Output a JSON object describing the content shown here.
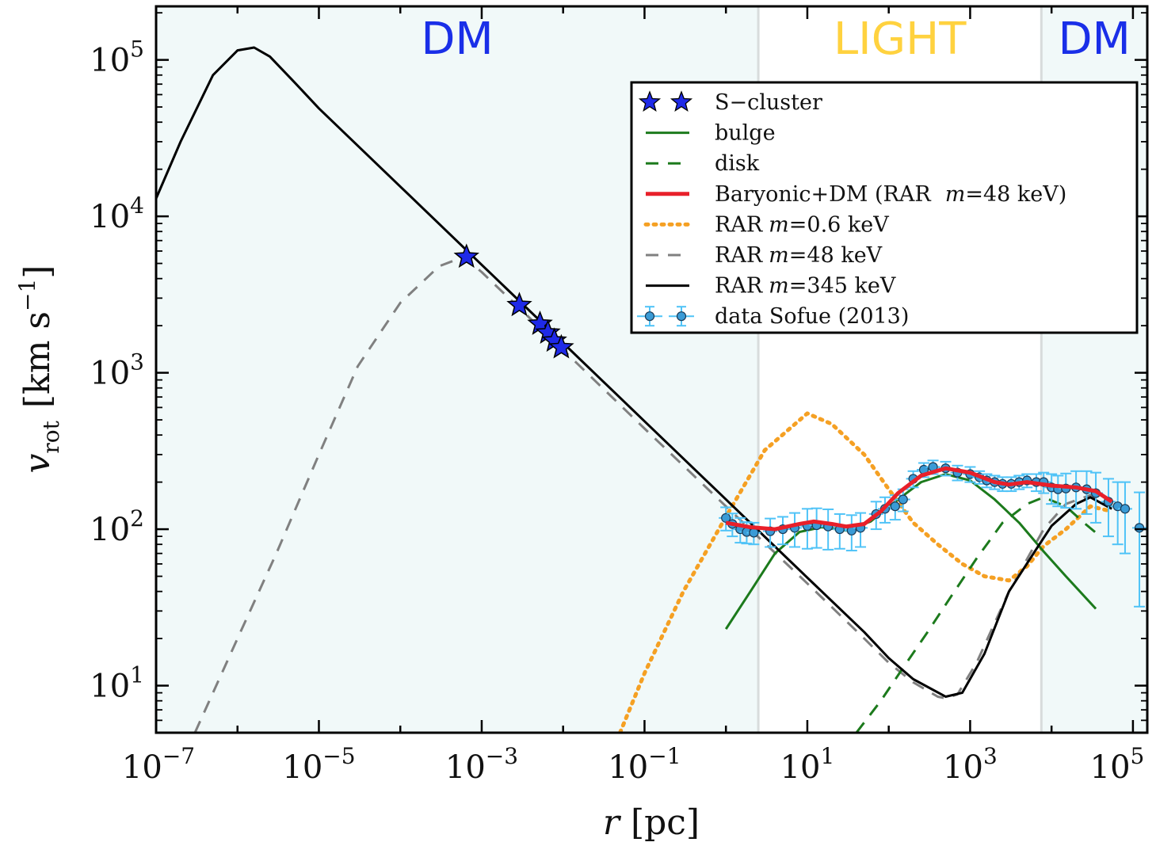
{
  "chart_data": {
    "type": "line",
    "title": "",
    "xlabel": {
      "var": "r",
      "unit": "[pc]"
    },
    "ylabel": {
      "var": "v",
      "sub": "rot",
      "unit_main": "[km s",
      "unit_exp": "−1",
      "unit_close": "]"
    },
    "x_scale": "log",
    "y_scale": "log",
    "xlim": [
      1e-07,
      150000
    ],
    "ylim": [
      5,
      220000
    ],
    "x_ticks": [
      {
        "value": 1e-07,
        "base": "10",
        "exp": "−7"
      },
      {
        "value": 1e-05,
        "base": "10",
        "exp": "−5"
      },
      {
        "value": 0.001,
        "base": "10",
        "exp": "−3"
      },
      {
        "value": 0.1,
        "base": "10",
        "exp": "−1"
      },
      {
        "value": 10,
        "base": "10",
        "exp": "1"
      },
      {
        "value": 1000,
        "base": "10",
        "exp": "3"
      },
      {
        "value": 100000,
        "base": "10",
        "exp": "5"
      }
    ],
    "y_ticks": [
      {
        "value": 10,
        "base": "10",
        "exp": "1"
      },
      {
        "value": 100,
        "base": "10",
        "exp": "2"
      },
      {
        "value": 1000,
        "base": "10",
        "exp": "3"
      },
      {
        "value": 10000,
        "base": "10",
        "exp": "4"
      },
      {
        "value": 100000,
        "base": "10",
        "exp": "5"
      }
    ],
    "grid": false,
    "legend_position": "top-right",
    "regions": [
      {
        "label": "DM",
        "x_range": [
          1e-07,
          2.5
        ],
        "shaded": true,
        "label_color": "#1a2fe8"
      },
      {
        "label": "LIGHT",
        "x_range": [
          2.5,
          7500
        ],
        "shaded": false,
        "label_color": "#ffd23f"
      },
      {
        "label": "DM",
        "x_range": [
          7500,
          150000
        ],
        "shaded": true,
        "label_color": "#1a2fe8"
      }
    ],
    "series": [
      {
        "name": "S−cluster",
        "style": "star-markers",
        "color": "#1f2ae8",
        "points": [
          [
            0.00065,
            5500
          ],
          [
            0.0029,
            2700
          ],
          [
            0.0052,
            2050
          ],
          [
            0.0065,
            1800
          ],
          [
            0.0078,
            1600
          ],
          [
            0.0095,
            1450
          ]
        ]
      },
      {
        "name": "bulge",
        "style": "solid",
        "color": "#1c7a1c",
        "points": [
          [
            1,
            23
          ],
          [
            2,
            40
          ],
          [
            4,
            70
          ],
          [
            8,
            96
          ],
          [
            15,
            103
          ],
          [
            30,
            98
          ],
          [
            60,
            112
          ],
          [
            120,
            150
          ],
          [
            250,
            200
          ],
          [
            500,
            225
          ],
          [
            1000,
            205
          ],
          [
            2000,
            155
          ],
          [
            4000,
            110
          ],
          [
            8000,
            72
          ],
          [
            15000,
            50
          ],
          [
            35000,
            31
          ]
        ]
      },
      {
        "name": "disk",
        "style": "dashed",
        "color": "#1c7a1c",
        "points": [
          [
            40,
            5
          ],
          [
            80,
            8
          ],
          [
            150,
            13
          ],
          [
            300,
            22
          ],
          [
            600,
            38
          ],
          [
            1200,
            65
          ],
          [
            2500,
            110
          ],
          [
            5000,
            145
          ],
          [
            8000,
            160
          ],
          [
            15000,
            140
          ],
          [
            25000,
            110
          ],
          [
            35000,
            95
          ]
        ]
      },
      {
        "name": "Baryonic+DM (RAR  m=48 keV)",
        "legend_text": "Baryonic+DM (RAR",
        "legend_m": "m",
        "legend_tail": "=48 keV)",
        "style": "solid-thick",
        "color": "#e8202a",
        "points": [
          [
            1,
            110
          ],
          [
            2,
            103
          ],
          [
            4,
            100
          ],
          [
            8,
            108
          ],
          [
            12,
            112
          ],
          [
            20,
            108
          ],
          [
            30,
            104
          ],
          [
            50,
            108
          ],
          [
            80,
            130
          ],
          [
            130,
            170
          ],
          [
            250,
            220
          ],
          [
            500,
            245
          ],
          [
            1000,
            230
          ],
          [
            2000,
            200
          ],
          [
            3000,
            193
          ],
          [
            5000,
            200
          ],
          [
            10000,
            190
          ],
          [
            20000,
            185
          ],
          [
            35000,
            175
          ],
          [
            55000,
            150
          ]
        ]
      },
      {
        "name": "RAR m=0.6 keV",
        "legend_text": "RAR",
        "legend_m": "m",
        "legend_tail": "=0.6 keV",
        "style": "dotted",
        "color": "#f5a023",
        "points": [
          [
            0.05,
            5
          ],
          [
            0.1,
            12
          ],
          [
            0.3,
            40
          ],
          [
            1,
            120
          ],
          [
            3,
            320
          ],
          [
            10,
            550
          ],
          [
            20,
            470
          ],
          [
            50,
            300
          ],
          [
            100,
            180
          ],
          [
            200,
            110
          ],
          [
            400,
            80
          ],
          [
            800,
            60
          ],
          [
            1500,
            50
          ],
          [
            3000,
            47
          ],
          [
            5000,
            58
          ],
          [
            8000,
            78
          ],
          [
            15000,
            100
          ],
          [
            30000,
            140
          ],
          [
            55000,
            130
          ]
        ]
      },
      {
        "name": "RAR m=48 keV",
        "legend_text": "RAR",
        "legend_m": "m",
        "legend_tail": "=48 keV",
        "style": "dashed",
        "color": "#808080",
        "points": [
          [
            3e-07,
            5
          ],
          [
            1e-06,
            20
          ],
          [
            3e-06,
            70
          ],
          [
            1e-05,
            300
          ],
          [
            3e-05,
            1100
          ],
          [
            0.0001,
            2800
          ],
          [
            0.0003,
            4800
          ],
          [
            0.0006,
            5500
          ],
          [
            0.001,
            4400
          ],
          [
            0.01,
            1400
          ],
          [
            0.1,
            440
          ],
          [
            1,
            140
          ],
          [
            10,
            45
          ],
          [
            50,
            20
          ],
          [
            100,
            14
          ],
          [
            200,
            10.5
          ],
          [
            400,
            8.5
          ],
          [
            500,
            8.3
          ],
          [
            700,
            8.8
          ],
          [
            1200,
            14
          ],
          [
            3000,
            40
          ],
          [
            8000,
            100
          ],
          [
            15000,
            145
          ],
          [
            30000,
            165
          ],
          [
            55000,
            140
          ]
        ]
      },
      {
        "name": "RAR m=345 keV",
        "legend_text": "RAR",
        "legend_m": "m",
        "legend_tail": "=345 keV",
        "style": "solid",
        "color": "#000000",
        "points": [
          [
            1e-07,
            13000
          ],
          [
            2e-07,
            30000
          ],
          [
            5e-07,
            80000
          ],
          [
            1e-06,
            115000
          ],
          [
            1.6e-06,
            120000
          ],
          [
            2.5e-06,
            105000
          ],
          [
            5e-06,
            72000
          ],
          [
            1e-05,
            49000
          ],
          [
            0.0001,
            15500
          ],
          [
            0.001,
            4900
          ],
          [
            0.01,
            1550
          ],
          [
            0.1,
            490
          ],
          [
            1,
            155
          ],
          [
            10,
            49
          ],
          [
            50,
            22
          ],
          [
            100,
            15
          ],
          [
            200,
            11
          ],
          [
            500,
            8.5
          ],
          [
            800,
            9
          ],
          [
            1500,
            16
          ],
          [
            3000,
            40
          ],
          [
            6000,
            70
          ],
          [
            10000,
            105
          ],
          [
            20000,
            145
          ],
          [
            30000,
            160
          ],
          [
            55000,
            135
          ]
        ]
      },
      {
        "name": "data Sofue (2013)",
        "style": "points-with-errorbars",
        "color": "#4fc3f7",
        "marker_fill": "#3a9bd6",
        "points": [
          {
            "x": 1.0,
            "y": 118,
            "yerr": 20
          },
          {
            "x": 1.2,
            "y": 108,
            "yerr": 18
          },
          {
            "x": 1.5,
            "y": 100,
            "yerr": 18
          },
          {
            "x": 1.8,
            "y": 96,
            "yerr": 15
          },
          {
            "x": 2.2,
            "y": 95,
            "yerr": 15
          },
          {
            "x": 3.5,
            "y": 97,
            "yerr": 20
          },
          {
            "x": 5,
            "y": 100,
            "yerr": 20
          },
          {
            "x": 7,
            "y": 102,
            "yerr": 25
          },
          {
            "x": 10,
            "y": 105,
            "yerr": 30
          },
          {
            "x": 13,
            "y": 106,
            "yerr": 30
          },
          {
            "x": 18,
            "y": 104,
            "yerr": 30
          },
          {
            "x": 25,
            "y": 100,
            "yerr": 25
          },
          {
            "x": 35,
            "y": 98,
            "yerr": 25
          },
          {
            "x": 45,
            "y": 102,
            "yerr": 25
          },
          {
            "x": 70,
            "y": 125,
            "yerr": 25
          },
          {
            "x": 90,
            "y": 135,
            "yerr": 25
          },
          {
            "x": 120,
            "y": 140,
            "yerr": 25
          },
          {
            "x": 150,
            "y": 155,
            "yerr": 25
          },
          {
            "x": 200,
            "y": 210,
            "yerr": 25
          },
          {
            "x": 270,
            "y": 240,
            "yerr": 25
          },
          {
            "x": 350,
            "y": 250,
            "yerr": 25
          },
          {
            "x": 500,
            "y": 245,
            "yerr": 25
          },
          {
            "x": 700,
            "y": 230,
            "yerr": 25
          },
          {
            "x": 1000,
            "y": 225,
            "yerr": 25
          },
          {
            "x": 1300,
            "y": 215,
            "yerr": 20
          },
          {
            "x": 1600,
            "y": 205,
            "yerr": 20
          },
          {
            "x": 2000,
            "y": 200,
            "yerr": 20
          },
          {
            "x": 2500,
            "y": 195,
            "yerr": 20
          },
          {
            "x": 3200,
            "y": 195,
            "yerr": 20
          },
          {
            "x": 4000,
            "y": 200,
            "yerr": 20
          },
          {
            "x": 5000,
            "y": 205,
            "yerr": 20
          },
          {
            "x": 6500,
            "y": 200,
            "yerr": 25
          },
          {
            "x": 8000,
            "y": 200,
            "yerr": 30
          },
          {
            "x": 10000,
            "y": 185,
            "yerr": 40
          },
          {
            "x": 12000,
            "y": 180,
            "yerr": 40
          },
          {
            "x": 15000,
            "y": 182,
            "yerr": 45
          },
          {
            "x": 20000,
            "y": 185,
            "yerr": 50
          },
          {
            "x": 27000,
            "y": 180,
            "yerr": 55
          },
          {
            "x": 35000,
            "y": 170,
            "yerr": 60
          },
          {
            "x": 50000,
            "y": 150,
            "yerr": 60
          },
          {
            "x": 65000,
            "y": 140,
            "yerr": 60
          },
          {
            "x": 80000,
            "y": 135,
            "yerr": 65
          },
          {
            "x": 120000,
            "y": 102,
            "yerr": 70
          }
        ]
      }
    ]
  }
}
